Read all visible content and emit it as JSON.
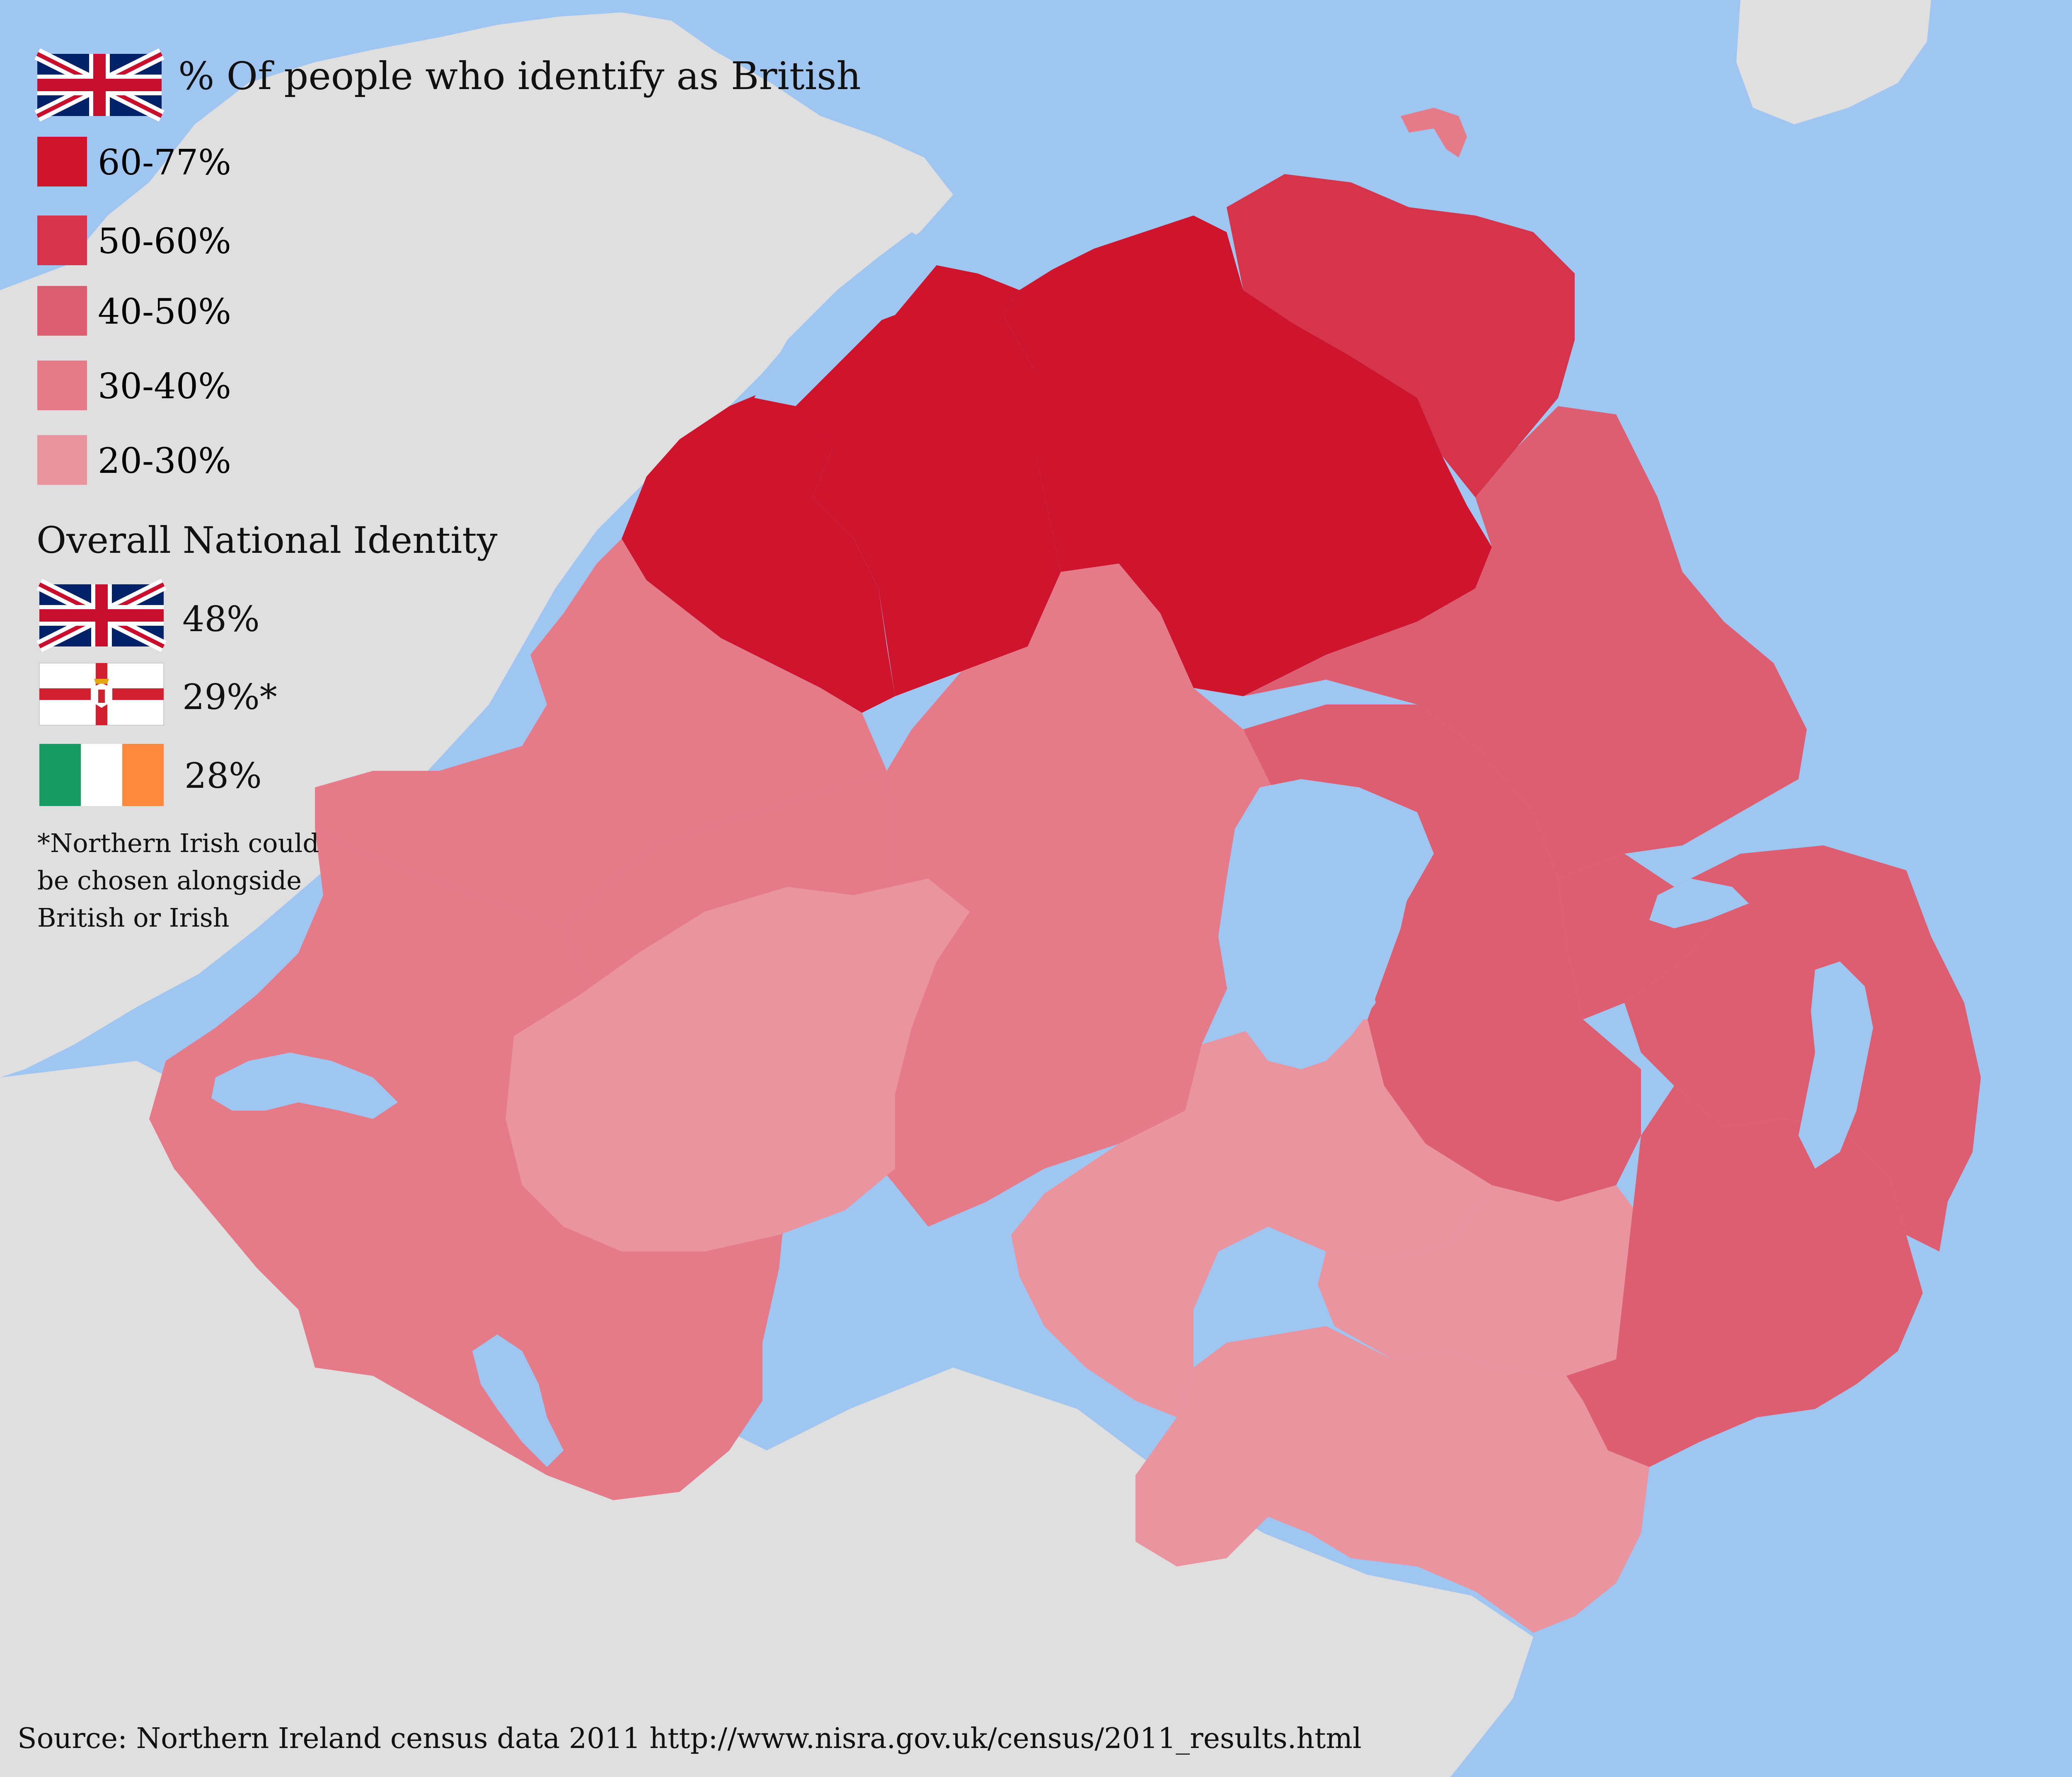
{
  "map": {
    "title": "% Of people who identify as British",
    "colors": {
      "sea": "#9fc5f1",
      "land_other": "#dfdfdf",
      "band_60_77": "#cf152e",
      "band_50_60": "#d6344b",
      "band_40_50": "#de5e71",
      "band_30_40": "#e57b89",
      "band_20_30": "#e9949e"
    },
    "legend": [
      {
        "label": "60-77%",
        "color": "#cf152e"
      },
      {
        "label": "50-60%",
        "color": "#d6344b"
      },
      {
        "label": "40-50%",
        "color": "#de5e71"
      },
      {
        "label": "30-40%",
        "color": "#e57b89"
      },
      {
        "label": "20-30%",
        "color": "#e9949e"
      }
    ],
    "regions": [
      {
        "band": "60-77%"
      },
      {
        "band": "60-77%"
      },
      {
        "band": "60-77%"
      },
      {
        "band": "50-60%"
      },
      {
        "band": "40-50%"
      },
      {
        "band": "40-50%"
      },
      {
        "band": "40-50%"
      },
      {
        "band": "40-50%"
      },
      {
        "band": "30-40%"
      },
      {
        "band": "30-40%"
      },
      {
        "band": "30-40%"
      },
      {
        "band": "30-40%"
      },
      {
        "band": "20-30%"
      },
      {
        "band": "20-30%"
      },
      {
        "band": "20-30%"
      }
    ]
  },
  "identity": {
    "title": "Overall National Identity",
    "items": [
      {
        "flag": "union-jack-icon",
        "value": "48%"
      },
      {
        "flag": "ulster-banner-icon",
        "value": "29%*"
      },
      {
        "flag": "irish-tricolour-icon",
        "value": "28%"
      }
    ],
    "footnote": "*Northern Irish could be chosen alongside British or Irish"
  },
  "source": "Source: Northern Ireland census data 2011 http://www.nisra.gov.uk/census/2011_results.html"
}
